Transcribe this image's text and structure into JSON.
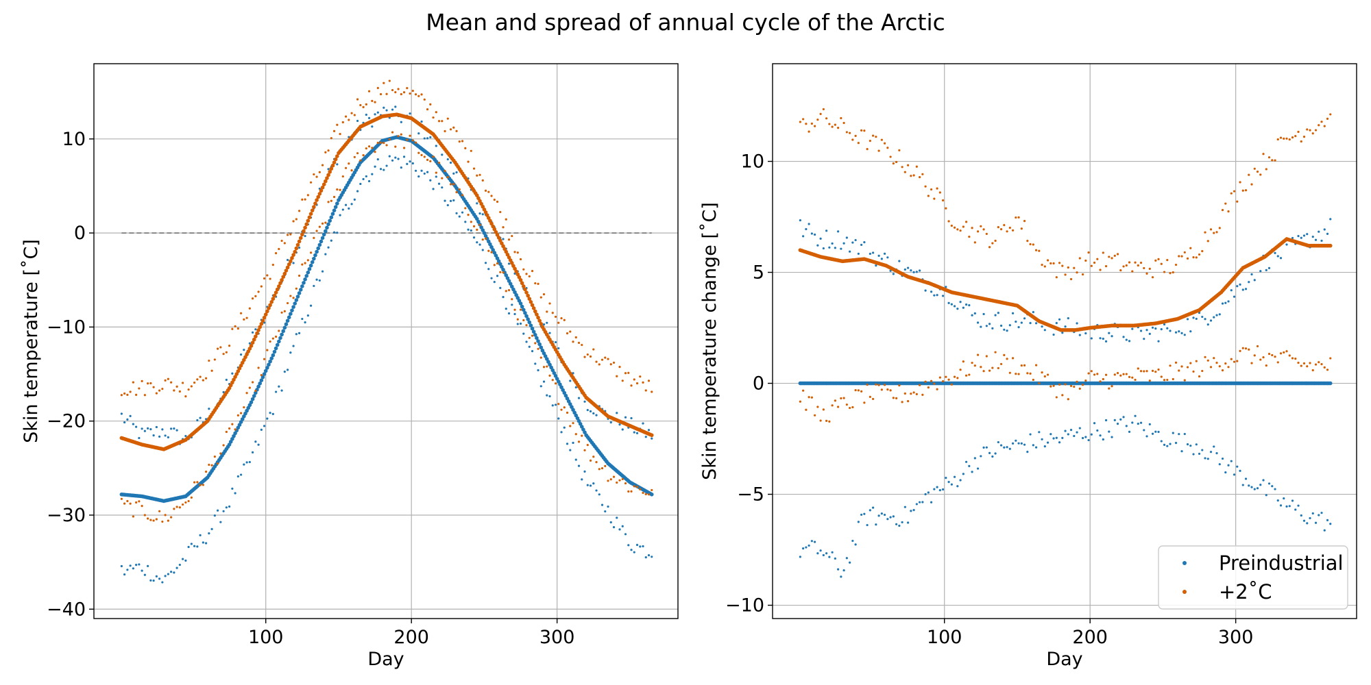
{
  "figure": {
    "title": "Mean and spread of annual cycle of the Arctic"
  },
  "colors": {
    "preindustrial": "#1f77b4",
    "warming": "#d45e00",
    "zero_line": "#666666"
  },
  "chart_data": [
    {
      "type": "scatter",
      "title": "",
      "xlabel": "Day",
      "ylabel": "Skin temperature [˚C]",
      "xlim": [
        -18,
        383
      ],
      "ylim": [
        -41,
        18
      ],
      "xticks": [
        100,
        200,
        300
      ],
      "yticks": [
        -40,
        -30,
        -20,
        -10,
        0,
        10
      ],
      "ytick_labels": [
        "−40",
        "−30",
        "−20",
        "−10",
        "0",
        "10"
      ],
      "grid": true,
      "reference_line": {
        "y": 0,
        "x_range": [
          1,
          365
        ],
        "style": "dashed"
      },
      "series": [
        {
          "name": "Preindustrial",
          "role": "mean",
          "color": "#1f77b4",
          "x": [
            1,
            15,
            30,
            45,
            60,
            75,
            90,
            105,
            120,
            135,
            150,
            165,
            180,
            190,
            200,
            215,
            230,
            245,
            260,
            275,
            290,
            305,
            320,
            335,
            350,
            365
          ],
          "y": [
            -27.8,
            -28.0,
            -28.5,
            -28.0,
            -26.0,
            -22.5,
            -18.0,
            -13.0,
            -7.5,
            -2.0,
            3.5,
            7.5,
            9.8,
            10.2,
            9.8,
            8.0,
            5.0,
            1.5,
            -3.0,
            -7.5,
            -12.5,
            -17.0,
            -21.5,
            -24.5,
            -26.5,
            -27.8
          ]
        },
        {
          "name": "Preindustrial",
          "role": "upper",
          "color": "#1f77b4",
          "x": [
            1,
            15,
            30,
            45,
            60,
            75,
            90,
            105,
            120,
            135,
            150,
            165,
            180,
            190,
            200,
            215,
            230,
            245,
            260,
            275,
            290,
            305,
            320,
            335,
            350,
            365
          ],
          "y": [
            -19.5,
            -21.5,
            -21.0,
            -22.0,
            -19.5,
            -16.0,
            -11.5,
            -7.0,
            -2.0,
            3.5,
            8.5,
            11.5,
            12.8,
            12.5,
            12.0,
            10.0,
            7.0,
            3.5,
            -0.5,
            -5.0,
            -9.5,
            -14.0,
            -18.0,
            -19.5,
            -20.5,
            -21.5
          ]
        },
        {
          "name": "Preindustrial",
          "role": "lower",
          "color": "#1f77b4",
          "x": [
            1,
            15,
            30,
            45,
            60,
            75,
            90,
            105,
            120,
            135,
            150,
            165,
            180,
            190,
            200,
            215,
            230,
            245,
            260,
            275,
            290,
            305,
            320,
            335,
            350,
            365
          ],
          "y": [
            -36.0,
            -35.5,
            -37.0,
            -34.5,
            -32.0,
            -28.5,
            -24.0,
            -18.5,
            -12.0,
            -5.5,
            1.0,
            5.5,
            7.5,
            7.8,
            7.3,
            5.5,
            2.5,
            -1.0,
            -5.5,
            -10.5,
            -16.0,
            -21.0,
            -26.5,
            -29.5,
            -33.0,
            -34.0
          ]
        },
        {
          "name": "+2˚C",
          "role": "mean",
          "color": "#d45e00",
          "x": [
            1,
            15,
            30,
            45,
            60,
            75,
            90,
            105,
            120,
            135,
            150,
            165,
            180,
            190,
            200,
            215,
            230,
            245,
            260,
            275,
            290,
            305,
            320,
            335,
            350,
            365
          ],
          "y": [
            -21.8,
            -22.5,
            -23.0,
            -22.0,
            -20.0,
            -16.5,
            -12.0,
            -7.0,
            -2.0,
            3.5,
            8.5,
            11.3,
            12.4,
            12.6,
            12.2,
            10.5,
            7.5,
            4.0,
            -0.5,
            -5.0,
            -10.0,
            -14.0,
            -17.5,
            -19.5,
            -20.5,
            -21.5
          ]
        },
        {
          "name": "+2˚C",
          "role": "upper",
          "color": "#d45e00",
          "x": [
            1,
            15,
            30,
            45,
            60,
            75,
            90,
            105,
            120,
            135,
            150,
            165,
            180,
            190,
            200,
            215,
            230,
            245,
            260,
            275,
            290,
            305,
            320,
            335,
            350,
            365
          ],
          "y": [
            -16.5,
            -16.5,
            -16.0,
            -16.5,
            -14.5,
            -11.5,
            -7.5,
            -3.5,
            1.5,
            6.0,
            11.0,
            14.0,
            15.2,
            15.5,
            14.8,
            13.0,
            10.5,
            7.0,
            2.5,
            -2.5,
            -7.0,
            -10.0,
            -12.5,
            -14.0,
            -15.5,
            -16.5
          ]
        },
        {
          "name": "+2˚C",
          "role": "lower",
          "color": "#d45e00",
          "x": [
            1,
            15,
            30,
            45,
            60,
            75,
            90,
            105,
            120,
            135,
            150,
            165,
            180,
            190,
            200,
            215,
            230,
            245,
            260,
            275,
            290,
            305,
            320,
            335,
            350,
            365
          ],
          "y": [
            -29.0,
            -29.5,
            -30.5,
            -28.5,
            -25.5,
            -21.5,
            -17.0,
            -11.5,
            -6.0,
            -0.5,
            5.0,
            8.5,
            9.8,
            10.0,
            9.5,
            7.5,
            4.5,
            1.0,
            -4.0,
            -9.0,
            -14.0,
            -18.5,
            -23.0,
            -25.5,
            -27.0,
            -27.5
          ]
        }
      ]
    },
    {
      "type": "scatter",
      "title": "",
      "xlabel": "Day",
      "ylabel": "Skin temperature change [˚C]",
      "xlim": [
        -18,
        383
      ],
      "ylim": [
        -10.6,
        14.4
      ],
      "xticks": [
        100,
        200,
        300
      ],
      "yticks": [
        -10,
        -5,
        0,
        5,
        10
      ],
      "ytick_labels": [
        "−10",
        "−5",
        "0",
        "5",
        "10"
      ],
      "grid": true,
      "legend": {
        "placement": "lower-right",
        "entries": [
          "Preindustrial",
          "+2˚C"
        ]
      },
      "series": [
        {
          "name": "Preindustrial",
          "role": "mean",
          "color": "#1f77b4",
          "x": [
            1,
            365
          ],
          "y": [
            0,
            0
          ]
        },
        {
          "name": "Preindustrial",
          "role": "upper",
          "color": "#1f77b4",
          "x": [
            1,
            15,
            30,
            45,
            60,
            75,
            90,
            105,
            120,
            135,
            150,
            165,
            180,
            190,
            200,
            215,
            230,
            245,
            260,
            275,
            290,
            305,
            320,
            335,
            350,
            365
          ],
          "y": [
            7.0,
            6.5,
            6.5,
            6.0,
            5.5,
            5.0,
            4.5,
            4.0,
            3.0,
            2.8,
            2.8,
            2.8,
            2.5,
            2.5,
            2.3,
            2.3,
            2.2,
            2.3,
            2.5,
            2.8,
            3.5,
            4.5,
            5.5,
            6.0,
            6.5,
            7.0
          ]
        },
        {
          "name": "Preindustrial",
          "role": "lower",
          "color": "#1f77b4",
          "x": [
            1,
            15,
            30,
            45,
            60,
            75,
            90,
            105,
            120,
            135,
            150,
            165,
            180,
            190,
            200,
            215,
            230,
            245,
            260,
            275,
            290,
            305,
            320,
            335,
            350,
            365
          ],
          "y": [
            -7.5,
            -7.5,
            -8.5,
            -6.0,
            -6.0,
            -6.0,
            -5.0,
            -4.5,
            -3.5,
            -3.0,
            -2.8,
            -2.6,
            -2.5,
            -2.3,
            -2.2,
            -2.0,
            -1.8,
            -2.3,
            -2.6,
            -2.8,
            -3.5,
            -4.2,
            -4.8,
            -5.5,
            -6.0,
            -6.3
          ]
        },
        {
          "name": "+2˚C",
          "role": "mean",
          "color": "#d45e00",
          "x": [
            1,
            15,
            30,
            45,
            60,
            75,
            90,
            105,
            120,
            135,
            150,
            165,
            180,
            190,
            200,
            215,
            230,
            245,
            260,
            275,
            290,
            305,
            320,
            335,
            350,
            365
          ],
          "y": [
            6.0,
            5.7,
            5.5,
            5.6,
            5.3,
            4.8,
            4.5,
            4.1,
            3.9,
            3.7,
            3.5,
            2.8,
            2.4,
            2.4,
            2.5,
            2.6,
            2.6,
            2.7,
            2.9,
            3.3,
            4.1,
            5.2,
            5.7,
            6.5,
            6.2,
            6.2
          ]
        },
        {
          "name": "+2˚C",
          "role": "upper",
          "color": "#d45e00",
          "x": [
            1,
            15,
            30,
            45,
            60,
            75,
            90,
            105,
            120,
            135,
            150,
            165,
            180,
            190,
            200,
            215,
            230,
            245,
            260,
            275,
            290,
            305,
            320,
            335,
            350,
            365
          ],
          "y": [
            11.5,
            12.0,
            11.5,
            11.0,
            10.5,
            9.8,
            8.8,
            7.5,
            6.8,
            6.5,
            7.5,
            5.8,
            5.0,
            5.2,
            5.5,
            5.5,
            5.2,
            5.2,
            5.3,
            6.2,
            7.5,
            9.0,
            10.0,
            11.0,
            11.5,
            12.0
          ]
        },
        {
          "name": "+2˚C",
          "role": "lower",
          "color": "#d45e00",
          "x": [
            1,
            15,
            30,
            45,
            60,
            75,
            90,
            105,
            120,
            135,
            150,
            165,
            180,
            190,
            200,
            215,
            230,
            245,
            260,
            275,
            290,
            305,
            320,
            335,
            350,
            365
          ],
          "y": [
            -0.5,
            -1.5,
            -1.0,
            -0.5,
            -0.5,
            -0.5,
            0.0,
            0.3,
            0.8,
            1.0,
            0.8,
            0.3,
            -0.3,
            -0.3,
            0.2,
            0.2,
            0.3,
            0.3,
            0.5,
            0.7,
            1.0,
            1.3,
            1.2,
            1.0,
            0.8,
            0.8
          ]
        }
      ]
    }
  ]
}
